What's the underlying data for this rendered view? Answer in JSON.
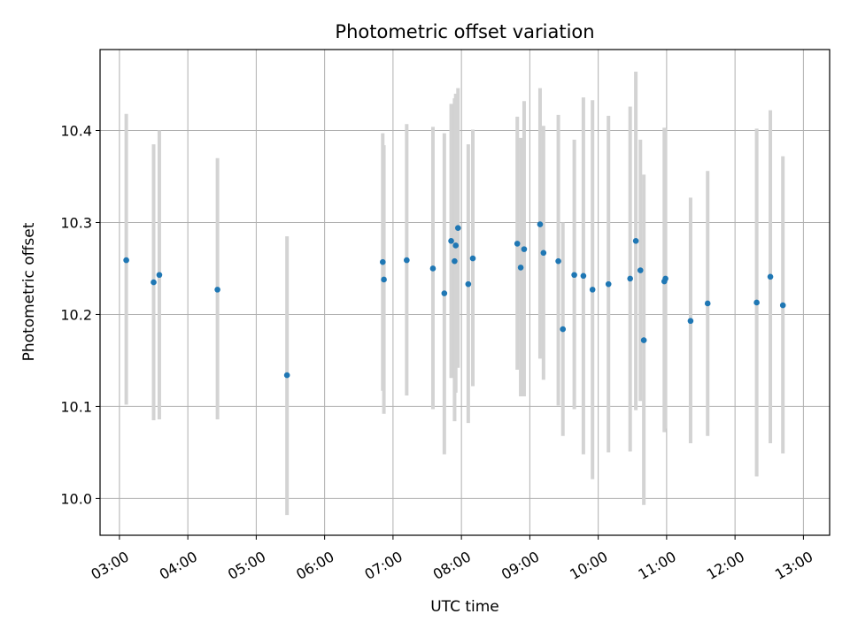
{
  "chart_data": {
    "type": "scatter",
    "title": "Photometric offset variation",
    "xlabel": "UTC time",
    "ylabel": "Photometric offset",
    "xlim": [
      "02:43",
      "13:23"
    ],
    "ylim": [
      9.96,
      10.488
    ],
    "x_ticks": [
      "03:00",
      "04:00",
      "05:00",
      "06:00",
      "07:00",
      "08:00",
      "09:00",
      "10:00",
      "11:00",
      "12:00",
      "13:00"
    ],
    "y_ticks": [
      "10.0",
      "10.1",
      "10.2",
      "10.3",
      "10.4"
    ],
    "grid": true,
    "marker_color": "#1f77b4",
    "errorbar_color": "#d3d3d3",
    "points": [
      {
        "t": "03:06",
        "y": 10.259,
        "lo": 10.102,
        "hi": 10.418
      },
      {
        "t": "03:30",
        "y": 10.235,
        "lo": 10.085,
        "hi": 10.385
      },
      {
        "t": "03:35",
        "y": 10.243,
        "lo": 10.086,
        "hi": 10.4
      },
      {
        "t": "04:26",
        "y": 10.227,
        "lo": 10.086,
        "hi": 10.37
      },
      {
        "t": "05:27",
        "y": 10.134,
        "lo": 9.982,
        "hi": 10.285
      },
      {
        "t": "06:51",
        "y": 10.257,
        "lo": 10.117,
        "hi": 10.397
      },
      {
        "t": "06:52",
        "y": 10.238,
        "lo": 10.092,
        "hi": 10.384
      },
      {
        "t": "07:12",
        "y": 10.259,
        "lo": 10.112,
        "hi": 10.407
      },
      {
        "t": "07:35",
        "y": 10.25,
        "lo": 10.097,
        "hi": 10.404
      },
      {
        "t": "07:45",
        "y": 10.223,
        "lo": 10.048,
        "hi": 10.397
      },
      {
        "t": "07:51",
        "y": 10.28,
        "lo": 10.131,
        "hi": 10.429
      },
      {
        "t": "07:54",
        "y": 10.258,
        "lo": 10.084,
        "hi": 10.435
      },
      {
        "t": "07:55",
        "y": 10.275,
        "lo": 10.115,
        "hi": 10.44
      },
      {
        "t": "07:57",
        "y": 10.294,
        "lo": 10.142,
        "hi": 10.446
      },
      {
        "t": "08:06",
        "y": 10.233,
        "lo": 10.082,
        "hi": 10.385
      },
      {
        "t": "08:10",
        "y": 10.261,
        "lo": 10.122,
        "hi": 10.401
      },
      {
        "t": "08:49",
        "y": 10.277,
        "lo": 10.14,
        "hi": 10.415
      },
      {
        "t": "08:52",
        "y": 10.251,
        "lo": 10.111,
        "hi": 10.392
      },
      {
        "t": "08:55",
        "y": 10.271,
        "lo": 10.111,
        "hi": 10.432
      },
      {
        "t": "09:09",
        "y": 10.298,
        "lo": 10.152,
        "hi": 10.446
      },
      {
        "t": "09:12",
        "y": 10.267,
        "lo": 10.129,
        "hi": 10.405
      },
      {
        "t": "09:25",
        "y": 10.258,
        "lo": 10.101,
        "hi": 10.417
      },
      {
        "t": "09:29",
        "y": 10.184,
        "lo": 10.068,
        "hi": 10.3
      },
      {
        "t": "09:39",
        "y": 10.243,
        "lo": 10.097,
        "hi": 10.39
      },
      {
        "t": "09:47",
        "y": 10.242,
        "lo": 10.048,
        "hi": 10.436
      },
      {
        "t": "09:55",
        "y": 10.227,
        "lo": 10.021,
        "hi": 10.433
      },
      {
        "t": "10:09",
        "y": 10.233,
        "lo": 10.05,
        "hi": 10.416
      },
      {
        "t": "10:28",
        "y": 10.239,
        "lo": 10.051,
        "hi": 10.426
      },
      {
        "t": "10:33",
        "y": 10.28,
        "lo": 10.096,
        "hi": 10.464
      },
      {
        "t": "10:37",
        "y": 10.248,
        "lo": 10.106,
        "hi": 10.39
      },
      {
        "t": "10:40",
        "y": 10.172,
        "lo": 9.993,
        "hi": 10.352
      },
      {
        "t": "10:58",
        "y": 10.236,
        "lo": 10.072,
        "hi": 10.403
      },
      {
        "t": "10:59",
        "y": 10.239,
        "lo": 10.076,
        "hi": 10.402
      },
      {
        "t": "11:21",
        "y": 10.193,
        "lo": 10.06,
        "hi": 10.327
      },
      {
        "t": "11:36",
        "y": 10.212,
        "lo": 10.068,
        "hi": 10.356
      },
      {
        "t": "12:19",
        "y": 10.213,
        "lo": 10.024,
        "hi": 10.402
      },
      {
        "t": "12:31",
        "y": 10.241,
        "lo": 10.06,
        "hi": 10.422
      },
      {
        "t": "12:42",
        "y": 10.21,
        "lo": 10.049,
        "hi": 10.372
      }
    ]
  }
}
